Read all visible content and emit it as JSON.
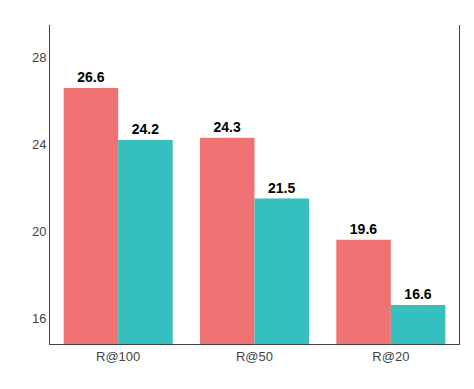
{
  "chart_data": {
    "type": "bar",
    "categories": [
      "R@100",
      "R@50",
      "R@20"
    ],
    "series": [
      {
        "color": "#F07272",
        "values": [
          26.6,
          24.3,
          19.6
        ]
      },
      {
        "color": "#35BFBF",
        "values": [
          24.2,
          21.5,
          16.6
        ]
      }
    ],
    "ylim": [
      14.8,
      29.5
    ],
    "yticks": [
      16,
      20,
      24,
      28
    ],
    "grid": false,
    "data_labels": true
  }
}
